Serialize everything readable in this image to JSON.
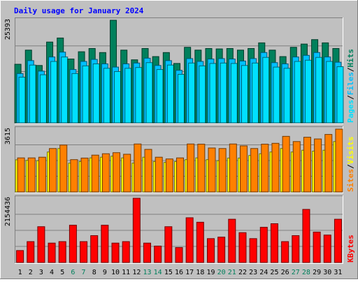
{
  "colors": {
    "background": "#c0c0c0",
    "title": "#0000ff",
    "hits": "#00805c",
    "files": "#00c0ff",
    "pages": "#00e0ff",
    "visits": "#ffff00",
    "sites": "#ff8000",
    "kbytes": "#ff0000",
    "weekend_day": "#00805c",
    "weekday": "#000000"
  },
  "chart_data": {
    "type": "bar",
    "title": "Daily usage for January 2024",
    "categories": [
      "1",
      "2",
      "3",
      "4",
      "5",
      "6",
      "7",
      "8",
      "9",
      "10",
      "11",
      "12",
      "13",
      "14",
      "15",
      "16",
      "17",
      "18",
      "19",
      "20",
      "21",
      "22",
      "23",
      "24",
      "25",
      "26",
      "27",
      "28",
      "29",
      "30",
      "31"
    ],
    "weekend_days": [
      "6",
      "7",
      "13",
      "14",
      "20",
      "21",
      "27",
      "28"
    ],
    "panels": [
      {
        "id": "hits-files-pages",
        "max_label": "25393",
        "ymax": 25393,
        "legend": [
          "Pages",
          "/",
          "Files",
          "/",
          "Hits"
        ],
        "series": [
          {
            "name": "Hits",
            "values": [
              14500,
              18000,
              14200,
              20000,
              21000,
              15800,
              17600,
              18400,
              17400,
              25393,
              18000,
              15600,
              18400,
              16400,
              17400,
              14700,
              18700,
              18000,
              18400,
              18300,
              18400,
              18000,
              18400,
              19800,
              18000,
              16400,
              18700,
              19500,
              20600,
              19800,
              18400
            ]
          },
          {
            "name": "Files",
            "values": [
              12200,
              15400,
              12800,
              16300,
              17500,
              13200,
              15200,
              15700,
              14600,
              13800,
              14600,
              14800,
              16000,
              14200,
              15400,
              13000,
              15900,
              15200,
              15800,
              15900,
              15800,
              15300,
              15900,
              17400,
              14900,
              14600,
              16300,
              16700,
              17400,
              16300,
              15000
            ]
          },
          {
            "name": "Pages",
            "values": [
              11300,
              14300,
              11900,
              15200,
              16300,
              12200,
              14100,
              14600,
              13500,
              12700,
              13500,
              13700,
              14900,
              13200,
              14300,
              12000,
              14800,
              14100,
              14700,
              14800,
              14700,
              14200,
              14800,
              16200,
              13800,
              13500,
              15200,
              15500,
              16200,
              15200,
              13900
            ]
          }
        ]
      },
      {
        "id": "visits-sites",
        "max_label": "3615",
        "ymax": 3615,
        "legend": [
          "Sites",
          "/",
          "Visits"
        ],
        "series": [
          {
            "name": "Visits",
            "values": [
              1850,
              1820,
              1800,
              2300,
              2500,
              1660,
              1750,
              1960,
              2000,
              2060,
              1960,
              1660,
              2000,
              1750,
              1700,
              1750,
              1860,
              1960,
              1860,
              1800,
              1950,
              1950,
              2100,
              2200,
              2300,
              2500,
              2300,
              2400,
              2350,
              2400,
              2900
            ]
          },
          {
            "name": "Sites",
            "values": [
              1960,
              1960,
              2000,
              2500,
              2700,
              1860,
              1950,
              2120,
              2200,
              2260,
              2170,
              2760,
              2450,
              2000,
              1900,
              1960,
              2760,
              2750,
              2530,
              2500,
              2760,
              2650,
              2500,
              2750,
              2800,
              3200,
              2900,
              3150,
              3050,
              3310,
              3615
            ]
          }
        ]
      },
      {
        "id": "kbytes",
        "max_label": "2154436",
        "ymax": 2154436,
        "legend": [
          "KBytes"
        ],
        "series": [
          {
            "name": "KBytes",
            "values": [
              400000,
              700000,
              1200000,
              650000,
              700000,
              1250000,
              700000,
              900000,
              1250000,
              650000,
              700000,
              2154436,
              650000,
              550000,
              1200000,
              500000,
              1500000,
              1350000,
              800000,
              850000,
              1450000,
              1000000,
              800000,
              1180000,
              1300000,
              700000,
              900000,
              1780000,
              1020000,
              920000,
              1450000
            ]
          }
        ]
      }
    ]
  }
}
